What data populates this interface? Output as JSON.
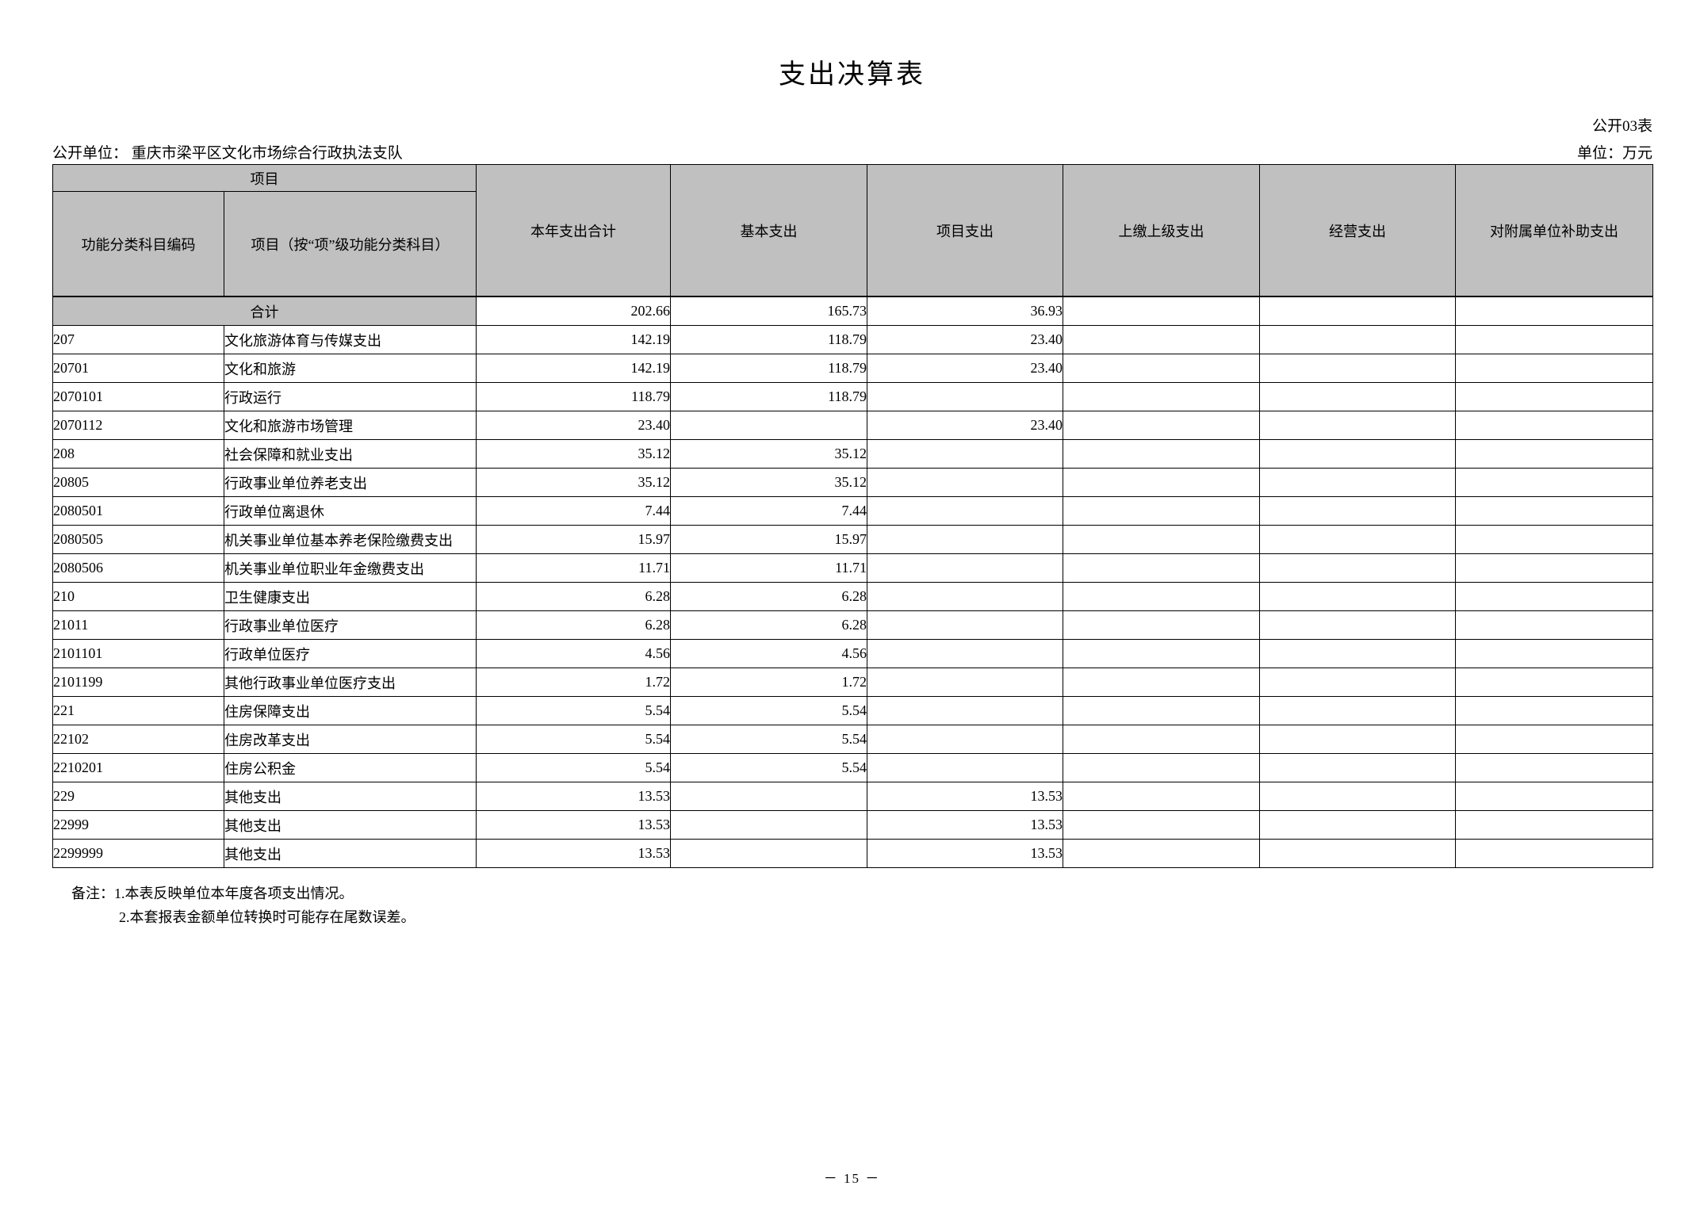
{
  "title": "支出决算表",
  "meta": {
    "table_code": "公开03表",
    "public_unit": "公开单位： 重庆市梁平区文化市场综合行政执法支队",
    "unit": "单位：万元"
  },
  "table": {
    "group_header": "项目",
    "sub_headers": [
      "功能分类科目编码",
      "项目（按“项”级功能分类科目）"
    ],
    "value_headers": [
      "本年支出合计",
      "基本支出",
      "项目支出",
      "上缴上级支出",
      "经营支出",
      "对附属单位补助支出"
    ],
    "total_row": {
      "label": "合计",
      "values": [
        "202.66",
        "165.73",
        "36.93",
        "",
        "",
        ""
      ]
    },
    "rows": [
      {
        "code": "207",
        "name": "文化旅游体育与传媒支出",
        "values": [
          "142.19",
          "118.79",
          "23.40",
          "",
          "",
          ""
        ]
      },
      {
        "code": "20701",
        "name": "文化和旅游",
        "values": [
          "142.19",
          "118.79",
          "23.40",
          "",
          "",
          ""
        ]
      },
      {
        "code": "2070101",
        "name": "行政运行",
        "values": [
          "118.79",
          "118.79",
          "",
          "",
          "",
          ""
        ]
      },
      {
        "code": "2070112",
        "name": "文化和旅游市场管理",
        "values": [
          "23.40",
          "",
          "23.40",
          "",
          "",
          ""
        ]
      },
      {
        "code": "208",
        "name": "社会保障和就业支出",
        "values": [
          "35.12",
          "35.12",
          "",
          "",
          "",
          ""
        ]
      },
      {
        "code": "20805",
        "name": "行政事业单位养老支出",
        "values": [
          "35.12",
          "35.12",
          "",
          "",
          "",
          ""
        ]
      },
      {
        "code": "2080501",
        "name": "行政单位离退休",
        "values": [
          "7.44",
          "7.44",
          "",
          "",
          "",
          ""
        ]
      },
      {
        "code": "2080505",
        "name": "机关事业单位基本养老保险缴费支出",
        "values": [
          "15.97",
          "15.97",
          "",
          "",
          "",
          ""
        ]
      },
      {
        "code": "2080506",
        "name": "机关事业单位职业年金缴费支出",
        "values": [
          "11.71",
          "11.71",
          "",
          "",
          "",
          ""
        ]
      },
      {
        "code": "210",
        "name": "卫生健康支出",
        "values": [
          "6.28",
          "6.28",
          "",
          "",
          "",
          ""
        ]
      },
      {
        "code": "21011",
        "name": "行政事业单位医疗",
        "values": [
          "6.28",
          "6.28",
          "",
          "",
          "",
          ""
        ]
      },
      {
        "code": "2101101",
        "name": "行政单位医疗",
        "values": [
          "4.56",
          "4.56",
          "",
          "",
          "",
          ""
        ]
      },
      {
        "code": "2101199",
        "name": "其他行政事业单位医疗支出",
        "values": [
          "1.72",
          "1.72",
          "",
          "",
          "",
          ""
        ]
      },
      {
        "code": "221",
        "name": "住房保障支出",
        "values": [
          "5.54",
          "5.54",
          "",
          "",
          "",
          ""
        ]
      },
      {
        "code": "22102",
        "name": "住房改革支出",
        "values": [
          "5.54",
          "5.54",
          "",
          "",
          "",
          ""
        ]
      },
      {
        "code": "2210201",
        "name": "住房公积金",
        "values": [
          "5.54",
          "5.54",
          "",
          "",
          "",
          ""
        ]
      },
      {
        "code": "229",
        "name": "其他支出",
        "values": [
          "13.53",
          "",
          "13.53",
          "",
          "",
          ""
        ]
      },
      {
        "code": "22999",
        "name": "其他支出",
        "values": [
          "13.53",
          "",
          "13.53",
          "",
          "",
          ""
        ]
      },
      {
        "code": "2299999",
        "name": "其他支出",
        "values": [
          "13.53",
          "",
          "13.53",
          "",
          "",
          ""
        ]
      }
    ]
  },
  "notes": [
    "备注：1.本表反映单位本年度各项支出情况。",
    "2.本套报表金额单位转换时可能存在尾数误差。"
  ],
  "page_number": "－ 15 －"
}
